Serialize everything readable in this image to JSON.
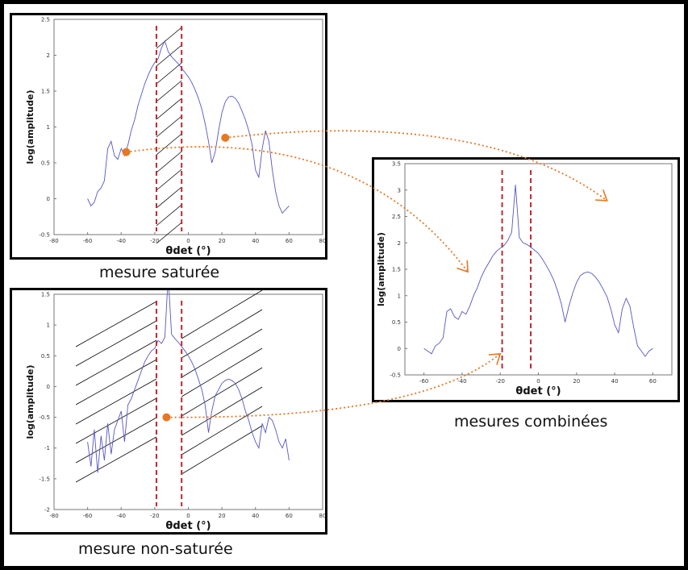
{
  "colors": {
    "curve": "#5656c6",
    "markers": "#e87722",
    "dashed": "#c0282d",
    "hatch": "#000000"
  },
  "captions": {
    "saturated": "mesure saturée",
    "unsaturated": "mesure non-saturée",
    "combined": "mesures combinées"
  },
  "chart_data": [
    {
      "id": "saturated",
      "type": "line",
      "title": "",
      "xlabel": "θdet (°)",
      "ylabel": "log(amplitude)",
      "xlim": [
        -80,
        80
      ],
      "ylim": [
        -0.5,
        2.5
      ],
      "xticks": [
        -80,
        -60,
        -40,
        -20,
        0,
        20,
        40,
        60,
        80
      ],
      "yticks": [
        -0.5,
        0,
        0.5,
        1,
        1.5,
        2,
        2.5
      ],
      "x": [
        -60,
        -58,
        -56,
        -54,
        -52,
        -50,
        -48,
        -46,
        -44,
        -42,
        -40,
        -38,
        -36,
        -34,
        -32,
        -30,
        -28,
        -26,
        -24,
        -22,
        -20,
        -18,
        -16,
        -14,
        -12,
        -10,
        -8,
        -6,
        -4,
        -2,
        0,
        2,
        4,
        6,
        8,
        10,
        12,
        14,
        16,
        18,
        20,
        22,
        24,
        26,
        28,
        30,
        32,
        34,
        36,
        38,
        40,
        42,
        44,
        46,
        48,
        50,
        52,
        54,
        56,
        58,
        60
      ],
      "y": [
        0.0,
        -0.1,
        -0.05,
        0.1,
        0.15,
        0.25,
        0.7,
        0.8,
        0.6,
        0.55,
        0.7,
        0.6,
        0.75,
        0.95,
        1.1,
        1.3,
        1.45,
        1.6,
        1.72,
        1.82,
        1.9,
        1.95,
        2.1,
        2.2,
        2.05,
        1.98,
        1.93,
        1.88,
        1.82,
        1.76,
        1.7,
        1.62,
        1.52,
        1.4,
        1.25,
        1.05,
        0.8,
        0.5,
        0.65,
        0.95,
        1.2,
        1.35,
        1.42,
        1.43,
        1.4,
        1.33,
        1.22,
        1.1,
        0.95,
        0.75,
        0.4,
        0.3,
        0.7,
        0.95,
        0.8,
        0.4,
        0.1,
        -0.1,
        -0.2,
        -0.15,
        -0.1
      ],
      "saturated_zone": [
        -19,
        -4
      ],
      "markers": [
        {
          "x": -37,
          "y": 0.65
        },
        {
          "x": 22,
          "y": 0.85
        }
      ]
    },
    {
      "id": "unsaturated",
      "type": "line",
      "title": "",
      "xlabel": "θdet (°)",
      "ylabel": "log(amplitude)",
      "xlim": [
        -80,
        80
      ],
      "ylim": [
        -2,
        1.5
      ],
      "xticks": [
        -80,
        -60,
        -40,
        -20,
        0,
        20,
        40,
        60,
        80
      ],
      "yticks": [
        -2,
        -1.5,
        -1,
        -0.5,
        0,
        0.5,
        1,
        1.5
      ],
      "x": [
        -60,
        -58,
        -56,
        -54,
        -52,
        -50,
        -48,
        -46,
        -44,
        -42,
        -40,
        -38,
        -36,
        -34,
        -32,
        -30,
        -28,
        -26,
        -24,
        -22,
        -20,
        -18,
        -16,
        -14,
        -12,
        -10,
        -8,
        -6,
        -4,
        -2,
        0,
        2,
        4,
        6,
        8,
        10,
        12,
        14,
        16,
        18,
        20,
        22,
        24,
        26,
        28,
        30,
        32,
        34,
        36,
        38,
        40,
        42,
        44,
        46,
        48,
        50,
        52,
        54,
        56,
        58,
        60
      ],
      "y": [
        -0.9,
        -1.3,
        -0.7,
        -1.4,
        -0.8,
        -1.2,
        -0.6,
        -1.1,
        -0.7,
        -0.55,
        -0.4,
        -0.9,
        -0.3,
        -0.2,
        -0.05,
        0.1,
        0.25,
        0.4,
        0.5,
        0.58,
        0.62,
        0.75,
        0.7,
        0.8,
        1.8,
        0.85,
        0.78,
        0.72,
        0.65,
        0.58,
        0.5,
        0.4,
        0.28,
        0.12,
        -0.05,
        -0.3,
        -0.75,
        -0.4,
        -0.15,
        -0.05,
        0.05,
        0.1,
        0.12,
        0.1,
        0.05,
        -0.05,
        -0.2,
        -0.4,
        -0.55,
        -0.75,
        -0.9,
        -1.0,
        -0.6,
        -0.75,
        -0.5,
        -0.55,
        -0.7,
        -0.9,
        -1.0,
        -0.85,
        -1.2
      ],
      "window": [
        -19,
        -4
      ],
      "markers": [
        {
          "x": -13,
          "y": -0.5
        }
      ]
    },
    {
      "id": "combined",
      "type": "line",
      "title": "",
      "xlabel": "θdet (°)",
      "ylabel": "log(amplitude)",
      "xlim": [
        -70,
        70
      ],
      "ylim": [
        -0.5,
        3.5
      ],
      "xticks": [
        -60,
        -40,
        -20,
        0,
        20,
        40,
        60
      ],
      "yticks": [
        -0.5,
        0,
        0.5,
        1,
        1.5,
        2,
        2.5,
        3,
        3.5
      ],
      "x": [
        -60,
        -58,
        -56,
        -54,
        -52,
        -50,
        -48,
        -46,
        -44,
        -42,
        -40,
        -38,
        -36,
        -34,
        -32,
        -30,
        -28,
        -26,
        -24,
        -22,
        -20,
        -18,
        -16,
        -14,
        -12,
        -10,
        -8,
        -6,
        -4,
        -2,
        0,
        2,
        4,
        6,
        8,
        10,
        12,
        14,
        16,
        18,
        20,
        22,
        24,
        26,
        28,
        30,
        32,
        34,
        36,
        38,
        40,
        42,
        44,
        46,
        48,
        50,
        52,
        54,
        56,
        58,
        60
      ],
      "y": [
        0.0,
        -0.05,
        -0.1,
        0.05,
        0.1,
        0.2,
        0.7,
        0.75,
        0.6,
        0.55,
        0.7,
        0.65,
        0.8,
        1.0,
        1.15,
        1.35,
        1.5,
        1.62,
        1.75,
        1.84,
        1.9,
        1.95,
        2.05,
        2.2,
        3.1,
        2.1,
        2.0,
        1.97,
        1.92,
        1.86,
        1.8,
        1.7,
        1.58,
        1.45,
        1.3,
        1.1,
        0.85,
        0.5,
        0.8,
        1.05,
        1.25,
        1.38,
        1.43,
        1.45,
        1.42,
        1.35,
        1.25,
        1.12,
        0.98,
        0.75,
        0.45,
        0.3,
        0.75,
        0.95,
        0.8,
        0.4,
        0.05,
        -0.05,
        -0.15,
        -0.05,
        0.0
      ],
      "junctions": [
        -19,
        -4
      ]
    }
  ]
}
